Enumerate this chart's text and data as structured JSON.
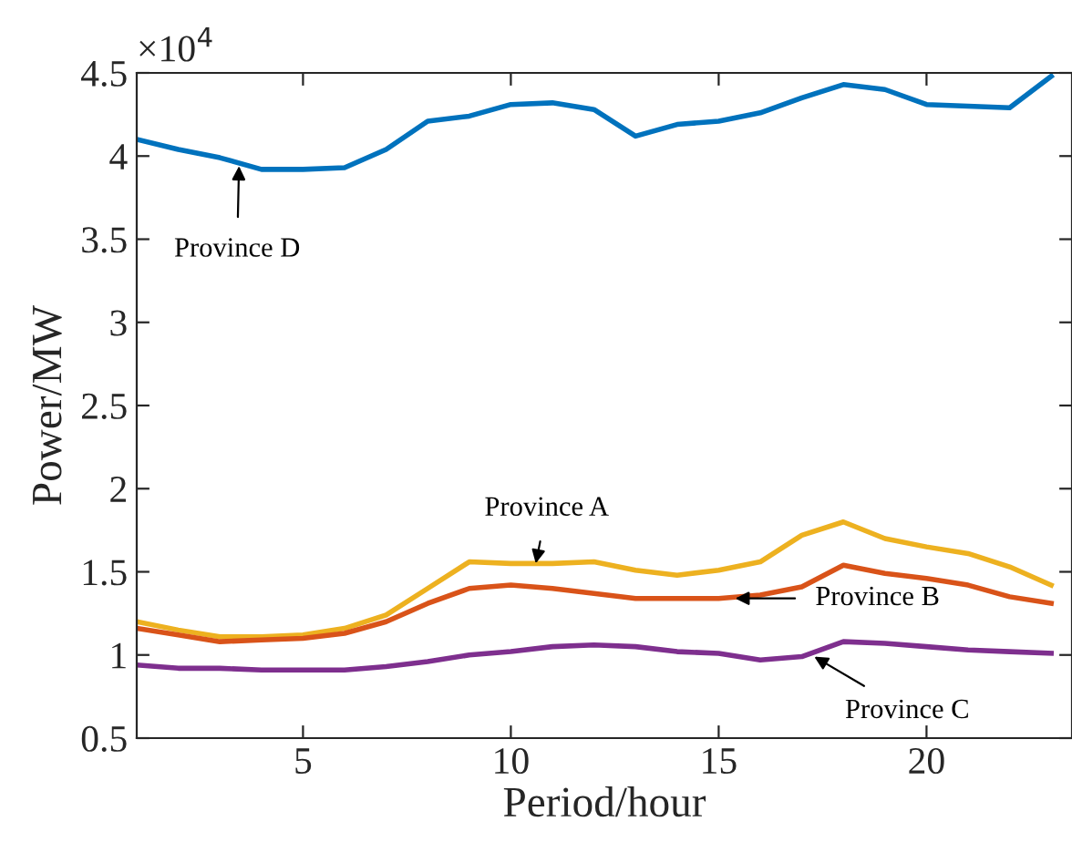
{
  "chart_data": {
    "type": "line",
    "xlabel": "Period/hour",
    "ylabel": "Power/MW",
    "x": [
      1,
      2,
      3,
      4,
      5,
      6,
      7,
      8,
      9,
      10,
      11,
      12,
      13,
      14,
      15,
      16,
      17,
      18,
      19,
      20,
      21,
      22,
      23
    ],
    "series": [
      {
        "color": "#0072bd",
        "values": [
          4.1,
          4.04,
          3.99,
          3.92,
          3.92,
          3.93,
          4.04,
          4.21,
          4.24,
          4.31,
          4.32,
          4.28,
          4.12,
          4.19,
          4.21,
          4.26,
          4.35,
          4.43,
          4.4,
          4.31,
          4.3,
          4.29,
          4.48
        ]
      },
      {
        "color": "#edb120",
        "values": [
          1.2,
          1.15,
          1.11,
          1.11,
          1.12,
          1.16,
          1.24,
          1.4,
          1.56,
          1.55,
          1.55,
          1.56,
          1.51,
          1.48,
          1.51,
          1.56,
          1.72,
          1.8,
          1.7,
          1.65,
          1.61,
          1.53,
          1.42
        ]
      },
      {
        "color": "#d95319",
        "values": [
          1.16,
          1.12,
          1.08,
          1.09,
          1.1,
          1.13,
          1.2,
          1.31,
          1.4,
          1.42,
          1.4,
          1.37,
          1.34,
          1.34,
          1.34,
          1.36,
          1.41,
          1.54,
          1.49,
          1.46,
          1.42,
          1.35,
          1.31
        ]
      },
      {
        "color": "#7e2f8e",
        "values": [
          0.94,
          0.92,
          0.92,
          0.91,
          0.91,
          0.91,
          0.93,
          0.96,
          1.0,
          1.02,
          1.05,
          1.06,
          1.05,
          1.02,
          1.01,
          0.97,
          0.99,
          1.08,
          1.07,
          1.05,
          1.03,
          1.02,
          1.01
        ]
      }
    ],
    "xlim": [
      1,
      23.5
    ],
    "xticks": [
      5,
      10,
      15,
      20
    ],
    "ylim": [
      0.5,
      4.5
    ],
    "yticks": [
      0.5,
      1,
      1.5,
      2,
      2.5,
      3,
      3.5,
      4,
      4.5
    ],
    "grid": false,
    "legend": false,
    "line_style": "solid",
    "marker": "none",
    "annotations": [
      "×10$^{4}$",
      {
        "text": "Province D",
        "x": 3.46,
        "y": 3.94
      },
      {
        "text": "Province A",
        "x": 10.6,
        "y": 1.55
      },
      {
        "text": "Province B",
        "x": 15.4,
        "y": 1.34
      },
      {
        "text": "Province C",
        "x": 17.3,
        "y": 0.99
      }
    ]
  }
}
